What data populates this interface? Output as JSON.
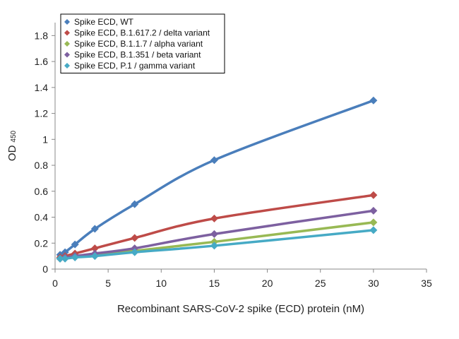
{
  "chart_data": {
    "type": "line",
    "xlabel": "Recombinant SARS-CoV-2 spike (ECD) protein (nM)",
    "ylabel": "OD",
    "ylabel_subscript": "450",
    "xlim": [
      0,
      35
    ],
    "ylim": [
      0,
      1.9
    ],
    "x_ticks": [
      0,
      5,
      10,
      15,
      20,
      25,
      30,
      35
    ],
    "y_ticks": [
      0,
      0.2,
      0.4,
      0.6,
      0.8,
      1,
      1.2,
      1.4,
      1.6,
      1.8
    ],
    "x_tick_labels": [
      "0",
      "5",
      "10",
      "15",
      "20",
      "25",
      "30",
      "35"
    ],
    "y_tick_labels": [
      "0",
      "0.2",
      "0.4",
      "0.6",
      "0.8",
      "1",
      "1.2",
      "1.4",
      "1.6",
      "1.8"
    ],
    "grid": false,
    "legend_position": "top-left",
    "series": [
      {
        "name": "Spike ECD, WT",
        "color": "#4a7ebb",
        "x": [
          0.47,
          0.94,
          1.875,
          3.75,
          7.5,
          15,
          30
        ],
        "y": [
          0.11,
          0.13,
          0.19,
          0.31,
          0.5,
          0.84,
          1.3
        ]
      },
      {
        "name": "Spike ECD, B.1.617.2 / delta variant",
        "color": "#be4b48",
        "x": [
          0.47,
          0.94,
          1.875,
          3.75,
          7.5,
          15,
          30
        ],
        "y": [
          0.09,
          0.1,
          0.12,
          0.16,
          0.24,
          0.39,
          0.57
        ]
      },
      {
        "name": "Spike ECD, B.1.1.7 / alpha variant",
        "color": "#98b954",
        "x": [
          0.47,
          0.94,
          1.875,
          3.75,
          7.5,
          15,
          30
        ],
        "y": [
          0.08,
          0.09,
          0.1,
          0.11,
          0.14,
          0.21,
          0.36
        ]
      },
      {
        "name": "Spike ECD, B.1.351 / beta variant",
        "color": "#7d60a0",
        "x": [
          0.47,
          0.94,
          1.875,
          3.75,
          7.5,
          15,
          30
        ],
        "y": [
          0.08,
          0.09,
          0.1,
          0.12,
          0.16,
          0.27,
          0.45
        ]
      },
      {
        "name": "Spike ECD, P.1 / gamma variant",
        "color": "#46aac5",
        "x": [
          0.47,
          0.94,
          1.875,
          3.75,
          7.5,
          15,
          30
        ],
        "y": [
          0.08,
          0.08,
          0.09,
          0.1,
          0.13,
          0.18,
          0.3
        ]
      }
    ]
  }
}
